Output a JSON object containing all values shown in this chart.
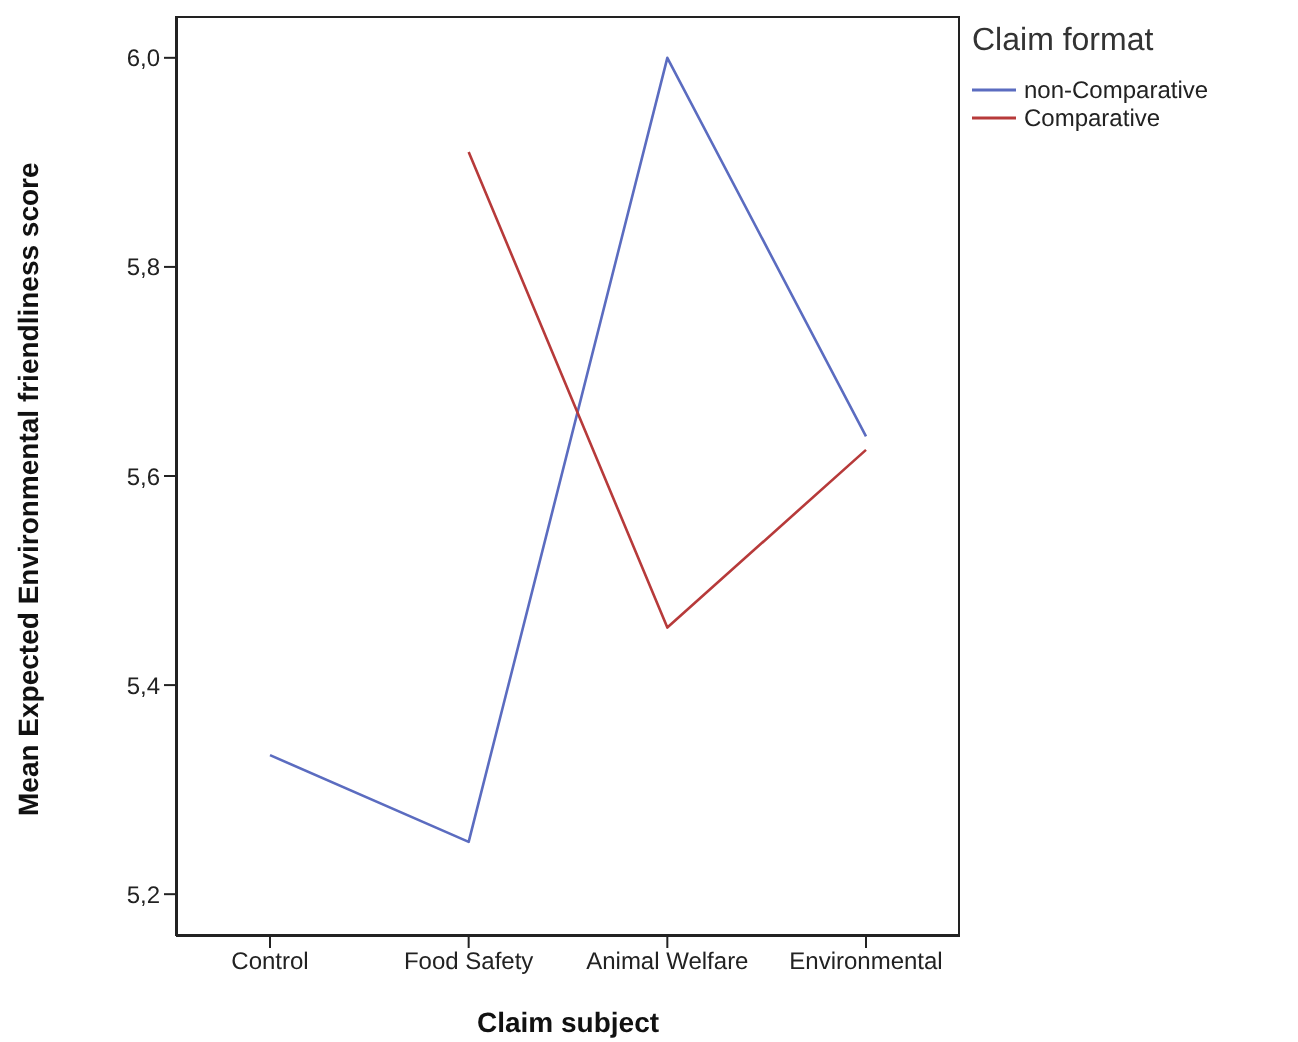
{
  "chart_data": {
    "type": "line",
    "xlabel": "Claim subject",
    "ylabel": "Mean Expected Environmental friendliness score",
    "legend_title": "Claim format",
    "legend": "right",
    "grid": false,
    "marker": "none",
    "line_style": "solid",
    "categories": [
      "Control",
      "Food Safety",
      "Animal Welfare",
      "Environmental"
    ],
    "ylim": [
      5.16,
      6.04
    ],
    "yticks": [
      {
        "value": 5.2,
        "label": "5,2"
      },
      {
        "value": 5.4,
        "label": "5,4"
      },
      {
        "value": 5.6,
        "label": "5,6"
      },
      {
        "value": 5.8,
        "label": "5,8"
      },
      {
        "value": 6.0,
        "label": "6,0"
      }
    ],
    "series": [
      {
        "name": "non-Comparative",
        "color": "#5b6cc0",
        "values": [
          5.333,
          5.25,
          6.0,
          5.638
        ]
      },
      {
        "name": "Comparative",
        "color": "#b73a3a",
        "values": [
          null,
          5.91,
          5.455,
          5.625
        ]
      }
    ]
  }
}
